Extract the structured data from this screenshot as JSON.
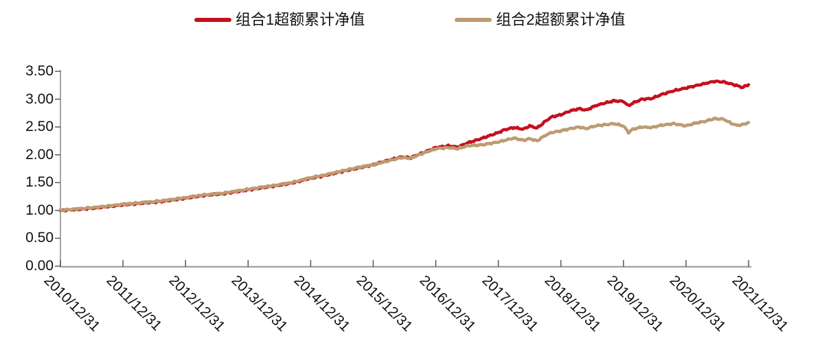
{
  "legend": {
    "items": [
      {
        "label": "组合1超额累计净值",
        "color": "#C4101E"
      },
      {
        "label": "组合2超额累计净值",
        "color": "#BD9B72"
      }
    ]
  },
  "chart_data": {
    "type": "line",
    "title": "",
    "xlabel": "",
    "ylabel": "",
    "grid": false,
    "legend_position": "top",
    "axis_color": "#A6A6A6",
    "tick_color": "#595959",
    "line_width": 4.5,
    "noise_amplitude": 0.008,
    "x_axis": {
      "min": 0,
      "max": 11,
      "labels": [
        "2010/12/31",
        "2011/12/31",
        "2012/12/31",
        "2013/12/31",
        "2014/12/31",
        "2015/12/31",
        "2016/12/31",
        "2017/12/31",
        "2018/12/31",
        "2019/12/31",
        "2020/12/31",
        "2021/12/31"
      ]
    },
    "y_axis": {
      "min": 0,
      "max": 3.5,
      "ticks": [
        "0.00",
        "0.50",
        "1.00",
        "1.50",
        "2.00",
        "2.50",
        "3.00",
        "3.50"
      ]
    },
    "series": [
      {
        "name": "组合1超额累计净值",
        "color": "#C4101E",
        "points": [
          [
            0,
            1.0
          ],
          [
            0.3,
            1.02
          ],
          [
            0.6,
            1.05
          ],
          [
            1,
            1.1
          ],
          [
            1.3,
            1.13
          ],
          [
            1.6,
            1.16
          ],
          [
            2,
            1.22
          ],
          [
            2.3,
            1.27
          ],
          [
            2.6,
            1.3
          ],
          [
            3,
            1.37
          ],
          [
            3.3,
            1.42
          ],
          [
            3.6,
            1.47
          ],
          [
            3.8,
            1.52
          ],
          [
            4,
            1.58
          ],
          [
            4.2,
            1.62
          ],
          [
            4.5,
            1.7
          ],
          [
            4.75,
            1.76
          ],
          [
            5,
            1.82
          ],
          [
            5.2,
            1.89
          ],
          [
            5.45,
            1.96
          ],
          [
            5.6,
            1.95
          ],
          [
            5.8,
            2.04
          ],
          [
            6,
            2.13
          ],
          [
            6.2,
            2.16
          ],
          [
            6.35,
            2.14
          ],
          [
            6.5,
            2.21
          ],
          [
            6.75,
            2.3
          ],
          [
            7,
            2.4
          ],
          [
            7.1,
            2.45
          ],
          [
            7.25,
            2.49
          ],
          [
            7.4,
            2.46
          ],
          [
            7.5,
            2.52
          ],
          [
            7.62,
            2.48
          ],
          [
            7.75,
            2.6
          ],
          [
            7.85,
            2.68
          ],
          [
            8,
            2.72
          ],
          [
            8.15,
            2.79
          ],
          [
            8.3,
            2.83
          ],
          [
            8.4,
            2.8
          ],
          [
            8.55,
            2.88
          ],
          [
            8.7,
            2.93
          ],
          [
            8.85,
            2.97
          ],
          [
            9,
            2.96
          ],
          [
            9.08,
            2.88
          ],
          [
            9.15,
            2.93
          ],
          [
            9.3,
            3.0
          ],
          [
            9.45,
            3.01
          ],
          [
            9.6,
            3.08
          ],
          [
            9.8,
            3.15
          ],
          [
            10,
            3.2
          ],
          [
            10.15,
            3.24
          ],
          [
            10.3,
            3.28
          ],
          [
            10.45,
            3.32
          ],
          [
            10.6,
            3.31
          ],
          [
            10.7,
            3.28
          ],
          [
            10.8,
            3.25
          ],
          [
            10.9,
            3.21
          ],
          [
            11,
            3.26
          ]
        ]
      },
      {
        "name": "组合2超额累计净值",
        "color": "#BD9B72",
        "points": [
          [
            0,
            1.0
          ],
          [
            0.3,
            1.03
          ],
          [
            0.6,
            1.06
          ],
          [
            1,
            1.11
          ],
          [
            1.3,
            1.14
          ],
          [
            1.6,
            1.17
          ],
          [
            2,
            1.23
          ],
          [
            2.3,
            1.28
          ],
          [
            2.6,
            1.31
          ],
          [
            3,
            1.38
          ],
          [
            3.3,
            1.43
          ],
          [
            3.6,
            1.48
          ],
          [
            3.8,
            1.53
          ],
          [
            4,
            1.59
          ],
          [
            4.2,
            1.63
          ],
          [
            4.5,
            1.71
          ],
          [
            4.75,
            1.77
          ],
          [
            5,
            1.82
          ],
          [
            5.2,
            1.88
          ],
          [
            5.45,
            1.95
          ],
          [
            5.6,
            1.94
          ],
          [
            5.8,
            2.03
          ],
          [
            6,
            2.11
          ],
          [
            6.2,
            2.13
          ],
          [
            6.35,
            2.11
          ],
          [
            6.5,
            2.16
          ],
          [
            6.75,
            2.18
          ],
          [
            7,
            2.23
          ],
          [
            7.1,
            2.26
          ],
          [
            7.25,
            2.3
          ],
          [
            7.4,
            2.26
          ],
          [
            7.5,
            2.29
          ],
          [
            7.62,
            2.25
          ],
          [
            7.75,
            2.35
          ],
          [
            7.85,
            2.4
          ],
          [
            8,
            2.43
          ],
          [
            8.15,
            2.47
          ],
          [
            8.3,
            2.5
          ],
          [
            8.4,
            2.47
          ],
          [
            8.55,
            2.52
          ],
          [
            8.7,
            2.54
          ],
          [
            8.85,
            2.56
          ],
          [
            9,
            2.52
          ],
          [
            9.08,
            2.4
          ],
          [
            9.15,
            2.46
          ],
          [
            9.3,
            2.5
          ],
          [
            9.45,
            2.49
          ],
          [
            9.6,
            2.53
          ],
          [
            9.8,
            2.56
          ],
          [
            10,
            2.52
          ],
          [
            10.15,
            2.57
          ],
          [
            10.3,
            2.6
          ],
          [
            10.45,
            2.65
          ],
          [
            10.6,
            2.64
          ],
          [
            10.7,
            2.58
          ],
          [
            10.8,
            2.53
          ],
          [
            10.9,
            2.54
          ],
          [
            11,
            2.58
          ]
        ]
      }
    ]
  }
}
